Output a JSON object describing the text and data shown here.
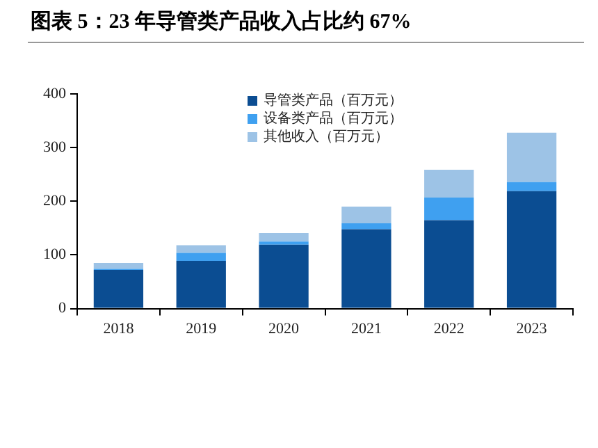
{
  "chart_data": {
    "type": "bar",
    "title": "图表 5：23 年导管类产品收入占比约 67%",
    "categories": [
      "2018",
      "2019",
      "2020",
      "2021",
      "2022",
      "2023"
    ],
    "stacked": true,
    "ylim": [
      0,
      400
    ],
    "yticks": [
      0,
      100,
      200,
      300,
      400
    ],
    "grid": false,
    "legend": "top",
    "series": [
      {
        "name": "导管类产品（百万元）",
        "color": "#0b4d92",
        "values": [
          72,
          89,
          119,
          148,
          165,
          219
        ]
      },
      {
        "name": "设备类产品（百万元）",
        "color": "#3fa0f0",
        "values": [
          2,
          15,
          6,
          11,
          42,
          17
        ]
      },
      {
        "name": "其他收入（百万元）",
        "color": "#9dc3e6",
        "values": [
          11,
          14,
          16,
          31,
          52,
          92
        ]
      }
    ]
  }
}
